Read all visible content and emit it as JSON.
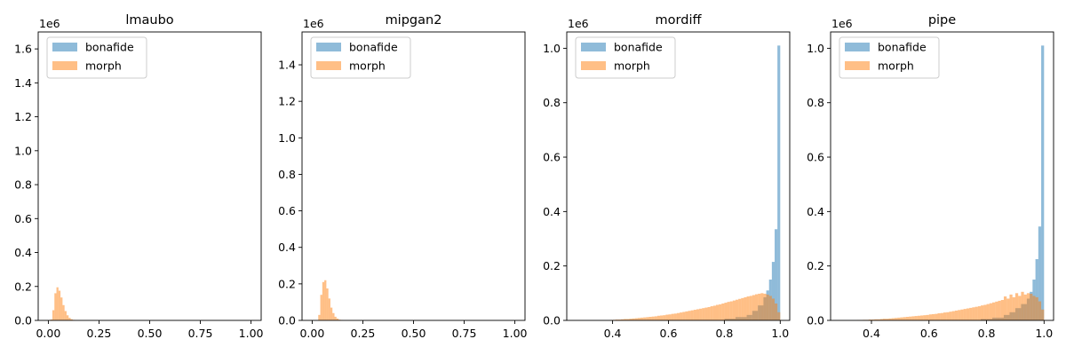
{
  "colors": {
    "bonafide": "#1f77b4",
    "morph": "#ff7f0e",
    "alpha": 0.5
  },
  "chart_data": [
    {
      "type": "bar",
      "title": "lmaubo",
      "offset_text": "1e6",
      "x_ticks": [
        "0.00",
        "0.25",
        "0.50",
        "0.75",
        "1.00"
      ],
      "y_ticks": [
        "0.0",
        "0.2",
        "0.4",
        "0.6",
        "0.8",
        "1.0",
        "1.2",
        "1.4",
        "1.6"
      ],
      "xlim": [
        -0.05,
        1.05
      ],
      "ylim": [
        0,
        1.7
      ],
      "legend": [
        "bonafide",
        "morph"
      ],
      "legend_position": "upper-left",
      "series": [
        {
          "name": "bonafide",
          "bins": []
        },
        {
          "name": "morph",
          "bins": [
            [
              0.01,
              0.02,
              0.005
            ],
            [
              0.02,
              0.03,
              0.06
            ],
            [
              0.03,
              0.04,
              0.16
            ],
            [
              0.04,
              0.05,
              0.195
            ],
            [
              0.05,
              0.06,
              0.175
            ],
            [
              0.06,
              0.07,
              0.135
            ],
            [
              0.07,
              0.08,
              0.09
            ],
            [
              0.08,
              0.09,
              0.055
            ],
            [
              0.09,
              0.1,
              0.03
            ],
            [
              0.1,
              0.11,
              0.015
            ],
            [
              0.11,
              0.12,
              0.007
            ],
            [
              0.12,
              0.13,
              0.003
            ],
            [
              0.13,
              0.14,
              0.001
            ]
          ]
        }
      ]
    },
    {
      "type": "bar",
      "title": "mipgan2",
      "offset_text": "1e6",
      "x_ticks": [
        "0.00",
        "0.25",
        "0.50",
        "0.75",
        "1.00"
      ],
      "y_ticks": [
        "0.0",
        "0.2",
        "0.4",
        "0.6",
        "0.8",
        "1.0",
        "1.2",
        "1.4"
      ],
      "xlim": [
        -0.05,
        1.05
      ],
      "ylim": [
        0,
        1.58
      ],
      "legend": [
        "bonafide",
        "morph"
      ],
      "legend_position": "upper-left",
      "series": [
        {
          "name": "bonafide",
          "bins": []
        },
        {
          "name": "morph",
          "bins": [
            [
              0.03,
              0.04,
              0.03
            ],
            [
              0.04,
              0.05,
              0.14
            ],
            [
              0.05,
              0.06,
              0.21
            ],
            [
              0.06,
              0.07,
              0.22
            ],
            [
              0.07,
              0.08,
              0.175
            ],
            [
              0.08,
              0.09,
              0.12
            ],
            [
              0.09,
              0.1,
              0.07
            ],
            [
              0.1,
              0.11,
              0.04
            ],
            [
              0.11,
              0.12,
              0.02
            ],
            [
              0.12,
              0.13,
              0.01
            ],
            [
              0.13,
              0.14,
              0.004
            ],
            [
              0.14,
              0.15,
              0.002
            ]
          ]
        }
      ]
    },
    {
      "type": "bar",
      "title": "mordiff",
      "offset_text": "1e6",
      "x_ticks": [
        "0.4",
        "0.6",
        "0.8",
        "1.0"
      ],
      "y_ticks": [
        "0.0",
        "0.2",
        "0.4",
        "0.6",
        "0.8",
        "1.0"
      ],
      "xlim": [
        0.236,
        1.034
      ],
      "ylim": [
        0,
        1.06
      ],
      "legend": [
        "bonafide",
        "morph"
      ],
      "legend_position": "upper-left",
      "series": [
        {
          "name": "bonafide",
          "bins": [
            [
              0.8,
              0.84,
              0.006
            ],
            [
              0.84,
              0.88,
              0.012
            ],
            [
              0.88,
              0.9,
              0.02
            ],
            [
              0.9,
              0.92,
              0.035
            ],
            [
              0.92,
              0.94,
              0.055
            ],
            [
              0.94,
              0.95,
              0.085
            ],
            [
              0.95,
              0.96,
              0.11
            ],
            [
              0.96,
              0.97,
              0.15
            ],
            [
              0.97,
              0.98,
              0.215
            ],
            [
              0.98,
              0.99,
              0.335
            ],
            [
              0.99,
              1.0,
              1.01
            ]
          ]
        },
        {
          "name": "morph",
          "bins": [
            [
              0.39,
              0.4,
              0.001
            ],
            [
              0.4,
              0.41,
              0.002
            ],
            [
              0.41,
              0.42,
              0.003
            ],
            [
              0.42,
              0.43,
              0.003
            ],
            [
              0.43,
              0.44,
              0.004
            ],
            [
              0.44,
              0.45,
              0.005
            ],
            [
              0.45,
              0.46,
              0.005
            ],
            [
              0.46,
              0.47,
              0.006
            ],
            [
              0.47,
              0.48,
              0.007
            ],
            [
              0.48,
              0.49,
              0.008
            ],
            [
              0.49,
              0.5,
              0.009
            ],
            [
              0.5,
              0.51,
              0.01
            ],
            [
              0.51,
              0.52,
              0.011
            ],
            [
              0.52,
              0.53,
              0.012
            ],
            [
              0.53,
              0.54,
              0.013
            ],
            [
              0.54,
              0.55,
              0.014
            ],
            [
              0.55,
              0.56,
              0.015
            ],
            [
              0.56,
              0.57,
              0.017
            ],
            [
              0.57,
              0.58,
              0.018
            ],
            [
              0.58,
              0.59,
              0.019
            ],
            [
              0.59,
              0.6,
              0.021
            ],
            [
              0.6,
              0.61,
              0.022
            ],
            [
              0.61,
              0.62,
              0.024
            ],
            [
              0.62,
              0.63,
              0.025
            ],
            [
              0.63,
              0.64,
              0.027
            ],
            [
              0.64,
              0.65,
              0.029
            ],
            [
              0.65,
              0.66,
              0.031
            ],
            [
              0.66,
              0.67,
              0.033
            ],
            [
              0.67,
              0.68,
              0.035
            ],
            [
              0.68,
              0.69,
              0.037
            ],
            [
              0.69,
              0.7,
              0.039
            ],
            [
              0.7,
              0.71,
              0.041
            ],
            [
              0.71,
              0.72,
              0.043
            ],
            [
              0.72,
              0.73,
              0.045
            ],
            [
              0.73,
              0.74,
              0.047
            ],
            [
              0.74,
              0.75,
              0.049
            ],
            [
              0.75,
              0.76,
              0.052
            ],
            [
              0.76,
              0.77,
              0.054
            ],
            [
              0.77,
              0.78,
              0.057
            ],
            [
              0.78,
              0.79,
              0.059
            ],
            [
              0.79,
              0.8,
              0.062
            ],
            [
              0.8,
              0.81,
              0.065
            ],
            [
              0.81,
              0.82,
              0.068
            ],
            [
              0.82,
              0.83,
              0.07
            ],
            [
              0.83,
              0.84,
              0.073
            ],
            [
              0.84,
              0.85,
              0.076
            ],
            [
              0.85,
              0.86,
              0.079
            ],
            [
              0.86,
              0.87,
              0.082
            ],
            [
              0.87,
              0.88,
              0.085
            ],
            [
              0.88,
              0.89,
              0.088
            ],
            [
              0.89,
              0.9,
              0.09
            ],
            [
              0.9,
              0.91,
              0.093
            ],
            [
              0.91,
              0.92,
              0.096
            ],
            [
              0.92,
              0.93,
              0.098
            ],
            [
              0.93,
              0.94,
              0.1
            ],
            [
              0.94,
              0.95,
              0.098
            ],
            [
              0.95,
              0.96,
              0.095
            ],
            [
              0.96,
              0.97,
              0.09
            ],
            [
              0.97,
              0.98,
              0.08
            ],
            [
              0.98,
              0.99,
              0.062
            ],
            [
              0.99,
              1.0,
              0.03
            ]
          ]
        }
      ]
    },
    {
      "type": "bar",
      "title": "pipe",
      "offset_text": "1e6",
      "x_ticks": [
        "0.4",
        "0.6",
        "0.8",
        "1.0"
      ],
      "y_ticks": [
        "0.0",
        "0.2",
        "0.4",
        "0.6",
        "0.8",
        "1.0"
      ],
      "xlim": [
        0.258,
        1.033
      ],
      "ylim": [
        0,
        1.06
      ],
      "legend": [
        "bonafide",
        "morph"
      ],
      "legend_position": "upper-left",
      "series": [
        {
          "name": "bonafide",
          "bins": [
            [
              0.78,
              0.82,
              0.005
            ],
            [
              0.82,
              0.86,
              0.01
            ],
            [
              0.86,
              0.88,
              0.02
            ],
            [
              0.88,
              0.9,
              0.03
            ],
            [
              0.9,
              0.92,
              0.045
            ],
            [
              0.92,
              0.94,
              0.06
            ],
            [
              0.94,
              0.95,
              0.08
            ],
            [
              0.95,
              0.96,
              0.105
            ],
            [
              0.96,
              0.97,
              0.15
            ],
            [
              0.97,
              0.98,
              0.225
            ],
            [
              0.98,
              0.99,
              0.345
            ],
            [
              0.99,
              1.0,
              1.01
            ]
          ]
        },
        {
          "name": "morph",
          "bins": [
            [
              0.35,
              0.36,
              0.001
            ],
            [
              0.36,
              0.37,
              0.001
            ],
            [
              0.37,
              0.38,
              0.002
            ],
            [
              0.38,
              0.39,
              0.002
            ],
            [
              0.39,
              0.4,
              0.003
            ],
            [
              0.4,
              0.41,
              0.003
            ],
            [
              0.41,
              0.42,
              0.004
            ],
            [
              0.42,
              0.43,
              0.004
            ],
            [
              0.43,
              0.44,
              0.005
            ],
            [
              0.44,
              0.45,
              0.006
            ],
            [
              0.45,
              0.46,
              0.006
            ],
            [
              0.46,
              0.47,
              0.007
            ],
            [
              0.47,
              0.48,
              0.008
            ],
            [
              0.48,
              0.49,
              0.009
            ],
            [
              0.49,
              0.5,
              0.01
            ],
            [
              0.5,
              0.51,
              0.011
            ],
            [
              0.51,
              0.52,
              0.012
            ],
            [
              0.52,
              0.53,
              0.013
            ],
            [
              0.53,
              0.54,
              0.014
            ],
            [
              0.54,
              0.55,
              0.015
            ],
            [
              0.55,
              0.56,
              0.016
            ],
            [
              0.56,
              0.57,
              0.017
            ],
            [
              0.57,
              0.58,
              0.018
            ],
            [
              0.58,
              0.59,
              0.019
            ],
            [
              0.59,
              0.6,
              0.02
            ],
            [
              0.6,
              0.61,
              0.022
            ],
            [
              0.61,
              0.62,
              0.023
            ],
            [
              0.62,
              0.63,
              0.024
            ],
            [
              0.63,
              0.64,
              0.026
            ],
            [
              0.64,
              0.65,
              0.027
            ],
            [
              0.65,
              0.66,
              0.029
            ],
            [
              0.66,
              0.67,
              0.03
            ],
            [
              0.67,
              0.68,
              0.032
            ],
            [
              0.68,
              0.69,
              0.034
            ],
            [
              0.69,
              0.7,
              0.036
            ],
            [
              0.7,
              0.71,
              0.038
            ],
            [
              0.71,
              0.72,
              0.04
            ],
            [
              0.72,
              0.73,
              0.042
            ],
            [
              0.73,
              0.74,
              0.044
            ],
            [
              0.74,
              0.75,
              0.046
            ],
            [
              0.75,
              0.76,
              0.048
            ],
            [
              0.76,
              0.77,
              0.05
            ],
            [
              0.77,
              0.78,
              0.052
            ],
            [
              0.78,
              0.79,
              0.055
            ],
            [
              0.79,
              0.8,
              0.057
            ],
            [
              0.8,
              0.81,
              0.06
            ],
            [
              0.81,
              0.82,
              0.063
            ],
            [
              0.82,
              0.83,
              0.066
            ],
            [
              0.83,
              0.84,
              0.069
            ],
            [
              0.84,
              0.85,
              0.072
            ],
            [
              0.85,
              0.86,
              0.075
            ],
            [
              0.86,
              0.87,
              0.088
            ],
            [
              0.87,
              0.88,
              0.08
            ],
            [
              0.88,
              0.89,
              0.095
            ],
            [
              0.89,
              0.9,
              0.085
            ],
            [
              0.9,
              0.91,
              0.1
            ],
            [
              0.91,
              0.92,
              0.09
            ],
            [
              0.92,
              0.93,
              0.105
            ],
            [
              0.93,
              0.94,
              0.095
            ],
            [
              0.94,
              0.95,
              0.1
            ],
            [
              0.95,
              0.96,
              0.098
            ],
            [
              0.96,
              0.97,
              0.09
            ],
            [
              0.97,
              0.98,
              0.085
            ],
            [
              0.98,
              0.99,
              0.07
            ],
            [
              0.99,
              1.0,
              0.04
            ]
          ]
        }
      ]
    }
  ]
}
